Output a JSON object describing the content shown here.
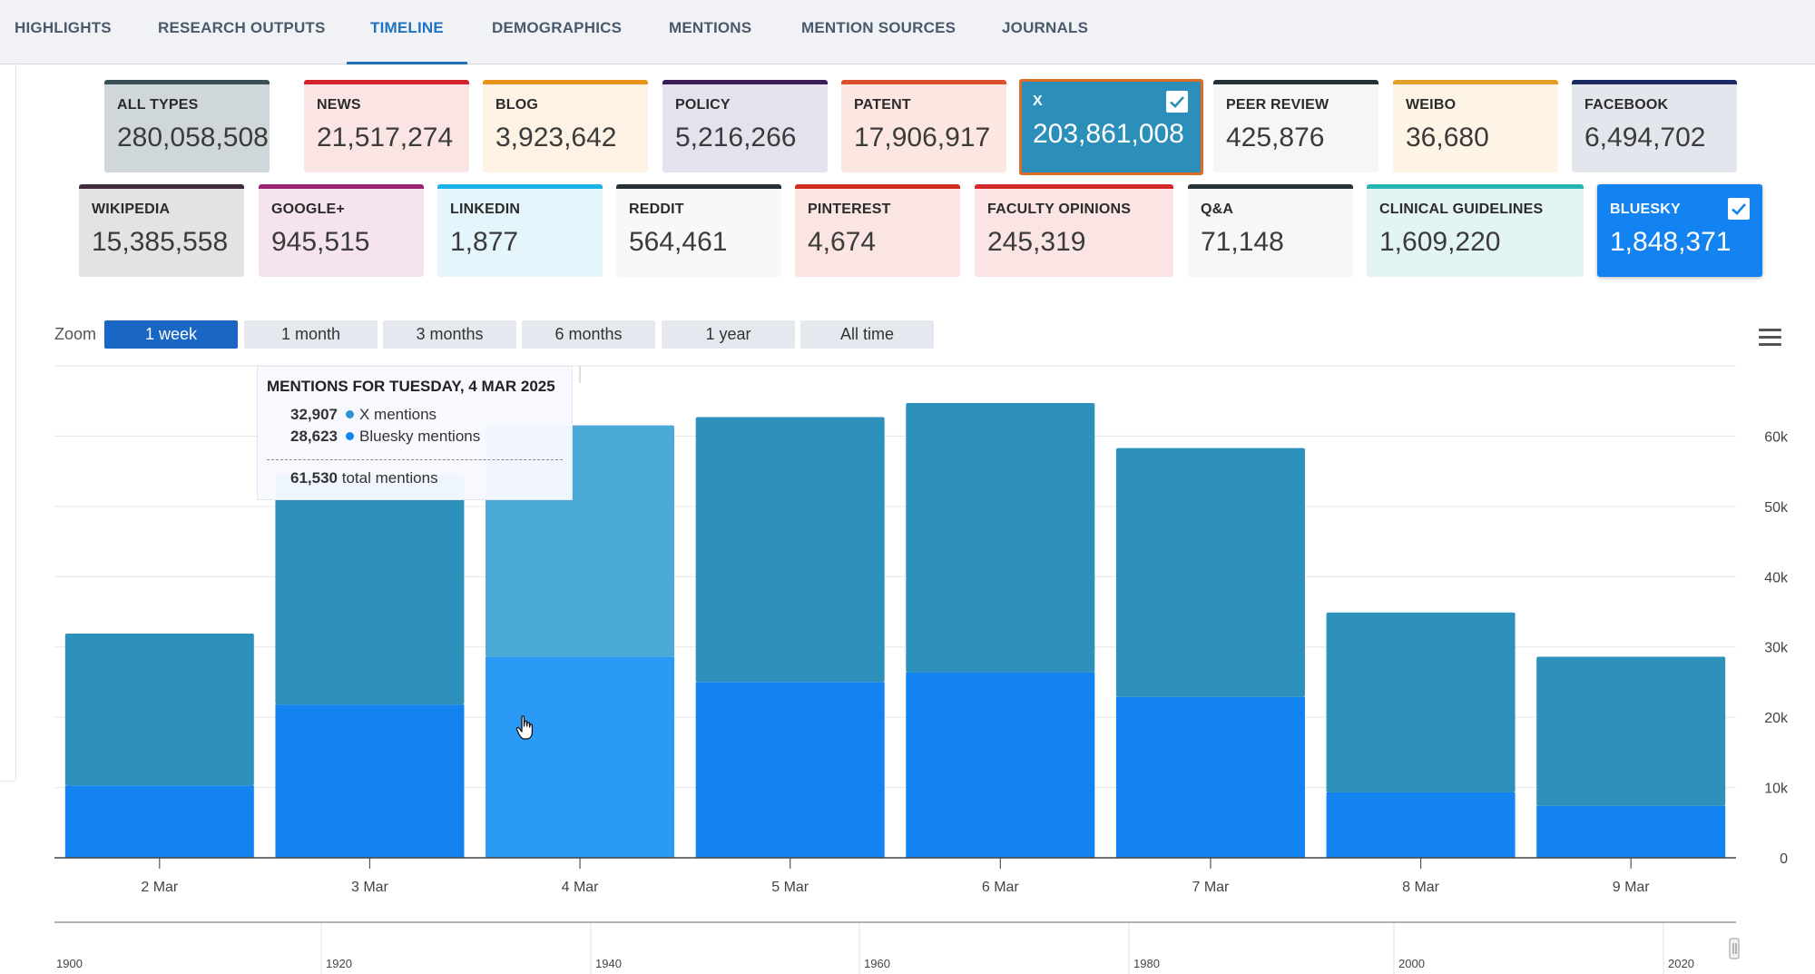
{
  "tabs": [
    {
      "label": "HIGHLIGHTS",
      "active": false
    },
    {
      "label": "RESEARCH OUTPUTS",
      "active": false
    },
    {
      "label": "TIMELINE",
      "active": true
    },
    {
      "label": "DEMOGRAPHICS",
      "active": false
    },
    {
      "label": "MENTIONS",
      "active": false
    },
    {
      "label": "MENTION SOURCES",
      "active": false
    },
    {
      "label": "JOURNALS",
      "active": false
    }
  ],
  "cards_row1": [
    {
      "label": "ALL TYPES",
      "value": "280,058,508",
      "color": "#3a4f55",
      "bg": "#d0d7da",
      "selected": false
    },
    {
      "label": "NEWS",
      "value": "21,517,274",
      "color": "#d4222b",
      "bg": "#fbe4e4",
      "selected": false
    },
    {
      "label": "BLOG",
      "value": "3,923,642",
      "color": "#e7931a",
      "bg": "#fdf2e3",
      "selected": false
    },
    {
      "label": "POLICY",
      "value": "5,216,266",
      "color": "#3a1d59",
      "bg": "#e6e2ed",
      "selected": false
    },
    {
      "label": "PATENT",
      "value": "17,906,917",
      "color": "#dc4f2d",
      "bg": "#fbe6e1",
      "selected": false
    },
    {
      "label": "X",
      "value": "203,861,008",
      "color": "#e06b24",
      "bg": "#2b8fba",
      "selected": true
    },
    {
      "label": "PEER REVIEW",
      "value": "425,876",
      "color": "#263238",
      "bg": "#f5f6f7",
      "selected": false
    },
    {
      "label": "WEIBO",
      "value": "36,680",
      "color": "#e5a027",
      "bg": "#fdf4e6",
      "selected": false
    },
    {
      "label": "FACEBOOK",
      "value": "6,494,702",
      "color": "#1b2a63",
      "bg": "#e4e6ee",
      "selected": false
    }
  ],
  "cards_row2": [
    {
      "label": "WIKIPEDIA",
      "value": "15,385,558",
      "color": "#3f2b3c",
      "bg": "#e3e3e5",
      "selected": false
    },
    {
      "label": "GOOGLE+",
      "value": "945,515",
      "color": "#9b2575",
      "bg": "#f5e4ee",
      "selected": false
    },
    {
      "label": "LINKEDIN",
      "value": "1,877",
      "color": "#1ab3e8",
      "bg": "#e5f5fc",
      "selected": false
    },
    {
      "label": "REDDIT",
      "value": "564,461",
      "color": "#263035",
      "bg": "#f7f8fa",
      "selected": false
    },
    {
      "label": "PINTEREST",
      "value": "4,674",
      "color": "#cf2d1e",
      "bg": "#fbe5e3",
      "selected": false
    },
    {
      "label": "FACULTY OPINIONS",
      "value": "245,319",
      "color": "#d42a2a",
      "bg": "#fbe4e4",
      "selected": false
    },
    {
      "label": "Q&A",
      "value": "71,148",
      "color": "#263238",
      "bg": "#f6f7f8",
      "selected": false
    },
    {
      "label": "CLINICAL GUIDELINES",
      "value": "1,609,220",
      "color": "#23b5b0",
      "bg": "#e2f5f4",
      "selected": false
    },
    {
      "label": "BLUESKY",
      "value": "1,848,371",
      "color": "#1283f0",
      "bg": "#1283f0",
      "selected": true
    }
  ],
  "zoom": {
    "label": "Zoom",
    "buttons": [
      "1 week",
      "1 month",
      "3 months",
      "6 months",
      "1 year",
      "All time"
    ],
    "active_index": 0
  },
  "chart_data": {
    "type": "bar",
    "stacked": true,
    "categories": [
      "2 Mar",
      "3 Mar",
      "4 Mar",
      "5 Mar",
      "6 Mar",
      "7 Mar",
      "8 Mar",
      "9 Mar"
    ],
    "series": [
      {
        "name": "X mentions",
        "color": "#2e91bb",
        "values": [
          21600,
          32700,
          32907,
          37700,
          38300,
          35400,
          25600,
          21200
        ]
      },
      {
        "name": "Bluesky mentions",
        "color": "#1283f0",
        "values": [
          10300,
          21800,
          28623,
          25000,
          26400,
          22900,
          9300,
          7400
        ]
      }
    ],
    "ylim": [
      0,
      70000
    ],
    "yticks": [
      "0",
      "10k",
      "20k",
      "30k",
      "40k",
      "50k",
      "60k"
    ],
    "y_axis_side": "right",
    "grid": true,
    "highlight_index": 2,
    "navigator_ticks": [
      "1900",
      "1920",
      "1940",
      "1960",
      "1980",
      "2000",
      "2020"
    ]
  },
  "tooltip": {
    "title": "MENTIONS FOR TUESDAY, 4 MAR 2025",
    "rows": [
      {
        "value": "32,907",
        "label": "X mentions"
      },
      {
        "value": "28,623",
        "label": "Bluesky mentions"
      }
    ],
    "total_value": "61,530",
    "total_label": "total mentions"
  }
}
